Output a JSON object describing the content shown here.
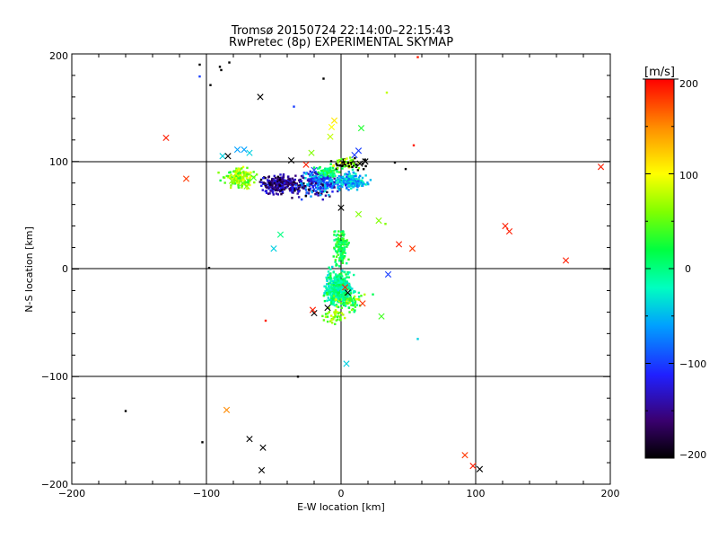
{
  "chart_data": {
    "type": "scatter",
    "title": "Tromsø 20150724 22:14:00–22:15:43",
    "subtitle": "RwPretec (8p) EXPERIMENTAL SKYMAP",
    "xlabel": "E-W location [km]",
    "ylabel": "N-S location [km]",
    "xlim": [
      -200,
      200
    ],
    "ylim": [
      -200,
      200
    ],
    "x_ticks": [
      "−200",
      "−100",
      "0",
      "100",
      "200"
    ],
    "y_ticks": [
      "−200",
      "−100",
      "0",
      "100",
      "200"
    ],
    "grid": "major lines at ±100 and 0",
    "colorbar": {
      "label": "[m/s]",
      "range": [
        -200,
        200
      ],
      "ticks": [
        "200",
        "100",
        "0",
        "−100",
        "−200"
      ],
      "colors": [
        "#000000",
        "#4b0082",
        "#0000ff",
        "#00bfff",
        "#00ff7f",
        "#00ff00",
        "#adff2f",
        "#ffff00",
        "#ffa500",
        "#ff0000"
      ]
    },
    "markers": {
      "cross": [
        {
          "x": -60,
          "y": 160,
          "v": -200
        },
        {
          "x": -115,
          "y": 84,
          "v": 180
        },
        {
          "x": -130,
          "y": 122,
          "v": 190
        },
        {
          "x": -85,
          "y": -131,
          "v": 150
        },
        {
          "x": -68,
          "y": -158,
          "v": -200
        },
        {
          "x": -58,
          "y": -166,
          "v": -200
        },
        {
          "x": -59,
          "y": -187,
          "v": -200
        },
        {
          "x": 103,
          "y": -186,
          "v": -200
        },
        {
          "x": 98,
          "y": -183,
          "v": 190
        },
        {
          "x": 92,
          "y": -173,
          "v": 180
        },
        {
          "x": 122,
          "y": 40,
          "v": 190
        },
        {
          "x": 125,
          "y": 35,
          "v": 190
        },
        {
          "x": 167,
          "y": 8,
          "v": 190
        },
        {
          "x": 193,
          "y": 95,
          "v": 190
        },
        {
          "x": 43,
          "y": 23,
          "v": 190
        },
        {
          "x": 53,
          "y": 19,
          "v": 180
        },
        {
          "x": 35,
          "y": -5,
          "v": -100
        },
        {
          "x": 4,
          "y": -88,
          "v": -40
        },
        {
          "x": -50,
          "y": 19,
          "v": -40
        },
        {
          "x": -45,
          "y": 32,
          "v": 0
        },
        {
          "x": 28,
          "y": 45,
          "v": 60
        },
        {
          "x": 13,
          "y": 51,
          "v": 60
        },
        {
          "x": 0,
          "y": 57,
          "v": -200
        },
        {
          "x": 15,
          "y": 131,
          "v": 30
        },
        {
          "x": -5,
          "y": 138,
          "v": 110
        },
        {
          "x": -7,
          "y": 132,
          "v": 100
        },
        {
          "x": -8,
          "y": 123,
          "v": 80
        },
        {
          "x": -22,
          "y": 108,
          "v": 60
        },
        {
          "x": 10,
          "y": 106,
          "v": -100
        },
        {
          "x": 13,
          "y": 110,
          "v": -100
        },
        {
          "x": -72,
          "y": 111,
          "v": -60
        },
        {
          "x": -77,
          "y": 111,
          "v": -60
        },
        {
          "x": -88,
          "y": 105,
          "v": -40
        },
        {
          "x": -84,
          "y": 105,
          "v": -200
        },
        {
          "x": -68,
          "y": 108,
          "v": -40
        },
        {
          "x": -37,
          "y": 101,
          "v": -200
        },
        {
          "x": -26,
          "y": 97,
          "v": 190
        },
        {
          "x": -20,
          "y": 92,
          "v": -100
        },
        {
          "x": -20,
          "y": -41,
          "v": -200
        },
        {
          "x": -21,
          "y": -38,
          "v": 190
        },
        {
          "x": -10,
          "y": -36,
          "v": -200
        },
        {
          "x": 3,
          "y": -17,
          "v": 190
        },
        {
          "x": 5,
          "y": -22,
          "v": -200
        },
        {
          "x": 16,
          "y": -32,
          "v": 180
        },
        {
          "x": 30,
          "y": -44,
          "v": 40
        },
        {
          "x": -81,
          "y": 82,
          "v": 60
        },
        {
          "x": -73,
          "y": 80,
          "v": 60
        },
        {
          "x": -70,
          "y": 77,
          "v": 60
        },
        {
          "x": -65,
          "y": 85,
          "v": 40
        },
        {
          "x": 18,
          "y": 100,
          "v": -200
        },
        {
          "x": 14,
          "y": 98,
          "v": -200
        }
      ],
      "dot": [
        {
          "x": -105,
          "y": 190,
          "v": -200
        },
        {
          "x": -105,
          "y": 179,
          "v": -100
        },
        {
          "x": -90,
          "y": 188,
          "v": -200
        },
        {
          "x": -89,
          "y": 185,
          "v": -200
        },
        {
          "x": -83,
          "y": 192,
          "v": -200
        },
        {
          "x": -97,
          "y": 171,
          "v": -200
        },
        {
          "x": -13,
          "y": 177,
          "v": -200
        },
        {
          "x": -35,
          "y": 151,
          "v": -100
        },
        {
          "x": 34,
          "y": 164,
          "v": 80
        },
        {
          "x": 57,
          "y": 197,
          "v": 190
        },
        {
          "x": 54,
          "y": 115,
          "v": 190
        },
        {
          "x": 48,
          "y": 93,
          "v": -200
        },
        {
          "x": 40,
          "y": 99,
          "v": -200
        },
        {
          "x": -98,
          "y": 1,
          "v": -200
        },
        {
          "x": -56,
          "y": -48,
          "v": 190
        },
        {
          "x": -32,
          "y": -100,
          "v": -200
        },
        {
          "x": -160,
          "y": -132,
          "v": -200
        },
        {
          "x": -103,
          "y": -161,
          "v": -200
        },
        {
          "x": 57,
          "y": -65,
          "v": -40
        },
        {
          "x": 33,
          "y": 42,
          "v": 60
        }
      ]
    }
  }
}
